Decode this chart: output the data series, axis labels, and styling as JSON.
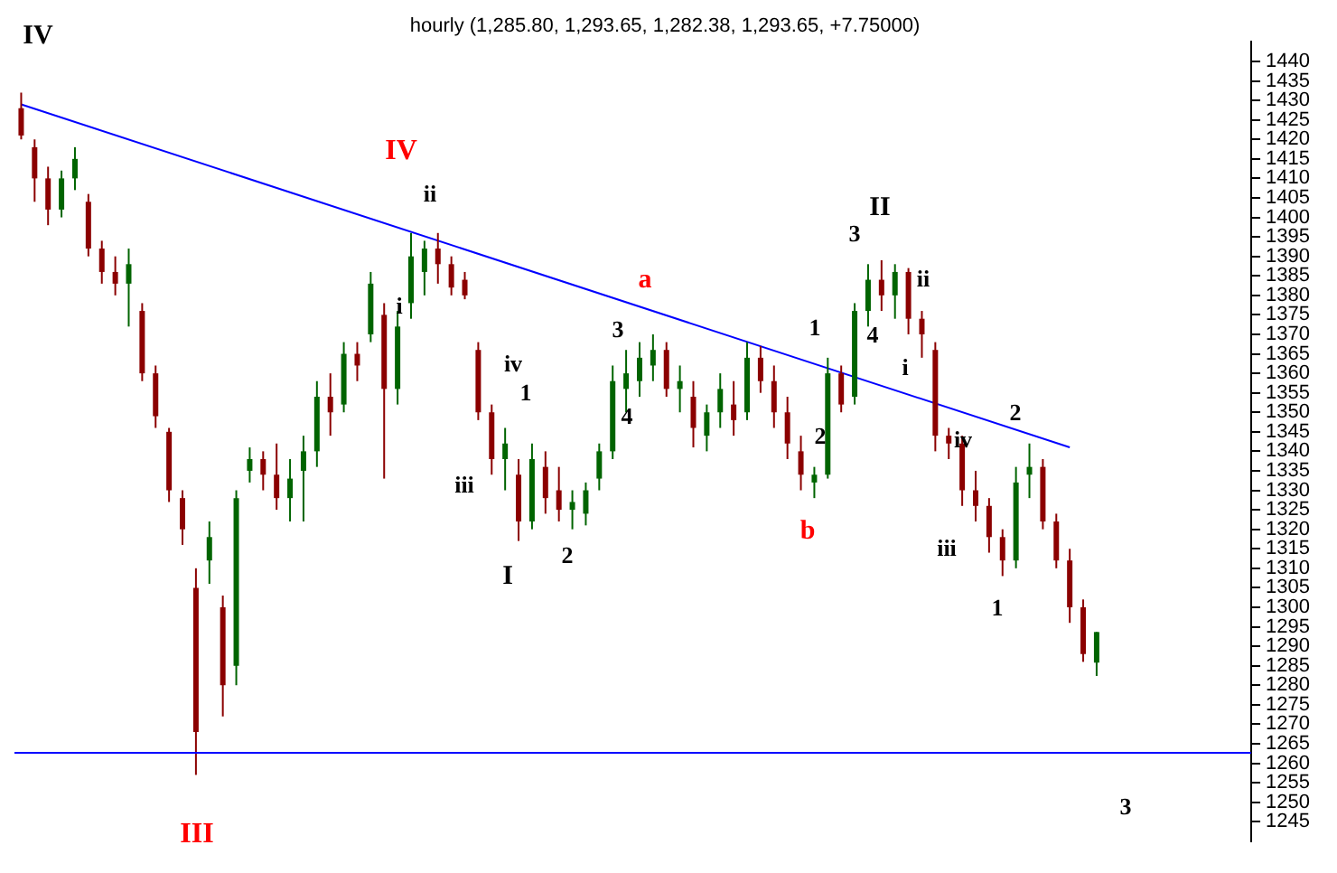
{
  "chart_data": {
    "type": "candlestick",
    "title": "hourly (1,285.80, 1,293.65, 1,282.38, 1,293.65, +7.75000)",
    "categories": [
      null,
      null,
      null,
      null,
      null,
      null,
      null,
      null,
      null,
      null,
      null,
      null,
      null,
      null,
      null,
      null,
      null,
      null,
      null,
      null,
      null,
      null,
      null,
      null,
      null,
      null,
      null,
      null,
      null,
      null,
      null,
      null,
      null,
      null,
      null,
      null,
      null,
      null,
      null,
      null,
      null,
      null,
      null,
      null,
      null,
      null,
      null,
      null,
      null,
      null,
      null,
      null,
      null,
      null,
      null,
      null,
      null,
      null,
      null,
      null,
      null,
      null,
      null,
      null,
      null,
      null,
      null,
      null,
      null,
      null,
      null,
      null,
      null,
      null,
      null,
      null,
      null,
      null,
      null,
      null,
      null,
      null,
      null,
      null,
      null,
      null,
      null,
      null,
      null,
      null,
      null,
      null
    ],
    "ohlc": [
      [
        1428,
        1432,
        1420,
        1421
      ],
      [
        1418,
        1420,
        1404,
        1410
      ],
      [
        1410,
        1413,
        1398,
        1402
      ],
      [
        1402,
        1412,
        1400,
        1410
      ],
      [
        1410,
        1418,
        1407,
        1415
      ],
      [
        1404,
        1406,
        1390,
        1392
      ],
      [
        1392,
        1394,
        1383,
        1386
      ],
      [
        1386,
        1390,
        1380,
        1383
      ],
      [
        1383,
        1392,
        1372,
        1388
      ],
      [
        1376,
        1378,
        1358,
        1360
      ],
      [
        1360,
        1362,
        1346,
        1349
      ],
      [
        1345,
        1346,
        1327,
        1330
      ],
      [
        1328,
        1330,
        1316,
        1320
      ],
      [
        1305,
        1310,
        1257,
        1268
      ],
      [
        1312,
        1322,
        1306,
        1318
      ],
      [
        1300,
        1303,
        1272,
        1280
      ],
      [
        1285,
        1330,
        1280,
        1328
      ],
      [
        1335,
        1341,
        1332,
        1338
      ],
      [
        1338,
        1340,
        1330,
        1334
      ],
      [
        1334,
        1342,
        1325,
        1328
      ],
      [
        1328,
        1338,
        1322,
        1333
      ],
      [
        1335,
        1344,
        1322,
        1340
      ],
      [
        1340,
        1358,
        1336,
        1354
      ],
      [
        1354,
        1360,
        1344,
        1350
      ],
      [
        1352,
        1368,
        1350,
        1365
      ],
      [
        1365,
        1368,
        1358,
        1362
      ],
      [
        1370,
        1386,
        1368,
        1383
      ],
      [
        1375,
        1378,
        1333,
        1356
      ],
      [
        1356,
        1376,
        1352,
        1372
      ],
      [
        1378,
        1396,
        1374,
        1390
      ],
      [
        1386,
        1394,
        1380,
        1392
      ],
      [
        1392,
        1396,
        1383,
        1388
      ],
      [
        1388,
        1390,
        1380,
        1382
      ],
      [
        1384,
        1386,
        1379,
        1380
      ],
      [
        1366,
        1368,
        1348,
        1350
      ],
      [
        1350,
        1352,
        1334,
        1338
      ],
      [
        1338,
        1346,
        1330,
        1342
      ],
      [
        1334,
        1338,
        1317,
        1322
      ],
      [
        1322,
        1342,
        1320,
        1338
      ],
      [
        1336,
        1340,
        1324,
        1328
      ],
      [
        1330,
        1336,
        1322,
        1325
      ],
      [
        1325,
        1330,
        1320,
        1327
      ],
      [
        1324,
        1332,
        1321,
        1330
      ],
      [
        1333,
        1342,
        1330,
        1340
      ],
      [
        1340,
        1362,
        1338,
        1358
      ],
      [
        1356,
        1366,
        1350,
        1360
      ],
      [
        1358,
        1368,
        1354,
        1364
      ],
      [
        1362,
        1370,
        1358,
        1366
      ],
      [
        1366,
        1368,
        1354,
        1356
      ],
      [
        1356,
        1362,
        1350,
        1358
      ],
      [
        1354,
        1358,
        1341,
        1346
      ],
      [
        1344,
        1352,
        1340,
        1350
      ],
      [
        1350,
        1360,
        1346,
        1356
      ],
      [
        1352,
        1358,
        1344,
        1348
      ],
      [
        1350,
        1368,
        1348,
        1364
      ],
      [
        1364,
        1367,
        1355,
        1358
      ],
      [
        1358,
        1362,
        1346,
        1350
      ],
      [
        1350,
        1354,
        1338,
        1342
      ],
      [
        1340,
        1344,
        1330,
        1334
      ],
      [
        1332,
        1336,
        1328,
        1334
      ],
      [
        1334,
        1364,
        1333,
        1360
      ],
      [
        1360,
        1362,
        1350,
        1352
      ],
      [
        1354,
        1378,
        1352,
        1376
      ],
      [
        1376,
        1388,
        1372,
        1384
      ],
      [
        1384,
        1389,
        1376,
        1380
      ],
      [
        1380,
        1388,
        1374,
        1386
      ],
      [
        1386,
        1387,
        1370,
        1374
      ],
      [
        1374,
        1376,
        1364,
        1370
      ],
      [
        1366,
        1368,
        1340,
        1344
      ],
      [
        1344,
        1346,
        1338,
        1342
      ],
      [
        1342,
        1344,
        1326,
        1330
      ],
      [
        1330,
        1335,
        1322,
        1326
      ],
      [
        1326,
        1328,
        1314,
        1318
      ],
      [
        1318,
        1320,
        1308,
        1312
      ],
      [
        1312,
        1336,
        1310,
        1332
      ],
      [
        1334,
        1342,
        1328,
        1336
      ],
      [
        1336,
        1338,
        1320,
        1322
      ],
      [
        1322,
        1324,
        1310,
        1312
      ],
      [
        1312,
        1315,
        1296,
        1300
      ],
      [
        1300,
        1302,
        1286,
        1288
      ],
      [
        1285.8,
        1293.65,
        1282.38,
        1293.65
      ],
      null,
      null,
      null,
      null,
      null,
      null,
      null,
      null,
      null,
      null,
      null
    ],
    "colors": [
      "#8b0000",
      "#8b0000",
      "#8b0000",
      "#006400",
      "#006400",
      "#8b0000",
      "#8b0000",
      "#8b0000",
      "#006400",
      "#8b0000",
      "#8b0000",
      "#8b0000",
      "#8b0000",
      "#8b0000",
      "#006400",
      "#8b0000",
      "#006400",
      "#006400",
      "#8b0000",
      "#8b0000",
      "#006400",
      "#006400",
      "#006400",
      "#8b0000",
      "#006400",
      "#8b0000",
      "#006400",
      "#8b0000",
      "#006400",
      "#006400",
      "#006400",
      "#8b0000",
      "#8b0000",
      "#8b0000",
      "#8b0000",
      "#8b0000",
      "#006400",
      "#8b0000",
      "#006400",
      "#8b0000",
      "#8b0000",
      "#006400",
      "#006400",
      "#006400",
      "#006400",
      "#006400",
      "#006400",
      "#006400",
      "#8b0000",
      "#006400",
      "#8b0000",
      "#006400",
      "#006400",
      "#8b0000",
      "#006400",
      "#8b0000",
      "#8b0000",
      "#8b0000",
      "#8b0000",
      "#006400",
      "#006400",
      "#8b0000",
      "#006400",
      "#006400",
      "#8b0000",
      "#006400",
      "#8b0000",
      "#8b0000",
      "#8b0000",
      "#8b0000",
      "#8b0000",
      "#8b0000",
      "#8b0000",
      "#8b0000",
      "#006400",
      "#006400",
      "#8b0000",
      "#8b0000",
      "#8b0000",
      "#8b0000",
      "#006400",
      null,
      null,
      null,
      null,
      null,
      null,
      null,
      null,
      null,
      null,
      null
    ],
    "series": [
      {
        "type": "line",
        "color": "#0000ff",
        "values": [
          1429,
          null,
          null,
          null,
          null,
          null,
          null,
          null,
          null,
          null,
          null,
          null,
          null,
          null,
          null,
          null,
          null,
          null,
          null,
          null,
          null,
          null,
          null,
          null,
          null,
          null,
          null,
          null,
          null,
          null,
          null,
          null,
          null,
          null,
          null,
          null,
          null,
          null,
          null,
          null,
          null,
          null,
          null,
          null,
          null,
          null,
          null,
          null,
          null,
          null,
          null,
          null,
          null,
          null,
          null,
          null,
          null,
          null,
          null,
          null,
          null,
          null,
          null,
          null,
          null,
          null,
          null,
          null,
          null,
          null,
          null,
          null,
          null,
          null,
          null,
          null,
          null,
          null,
          1341,
          null,
          null,
          null,
          null,
          null,
          null,
          null,
          null,
          null,
          null,
          null,
          null,
          null
        ]
      }
    ],
    "ylim": [
      1240,
      1445
    ],
    "yticks": [
      1245,
      1250,
      1255,
      1260,
      1265,
      1270,
      1275,
      1280,
      1285,
      1290,
      1295,
      1300,
      1305,
      1310,
      1315,
      1320,
      1325,
      1330,
      1335,
      1340,
      1345,
      1350,
      1355,
      1360,
      1365,
      1370,
      1375,
      1380,
      1385,
      1390,
      1395,
      1400,
      1405,
      1410,
      1415,
      1420,
      1425,
      1430,
      1435,
      1440
    ],
    "tick_labels": "y",
    "ref_lines": [
      {
        "axis": "y",
        "value": 1263,
        "color": "#0000ff"
      }
    ],
    "annotations": [
      "IV",
      "IV",
      "ii",
      "i",
      "iv",
      "1",
      "iii",
      "I",
      "2",
      "3",
      "4",
      "a",
      "1",
      "2",
      "b",
      "3",
      "II",
      "4",
      "ii",
      "i",
      "iv",
      "iii",
      "1",
      "2",
      "3",
      "III"
    ],
    "grid": false,
    "legend": false
  }
}
